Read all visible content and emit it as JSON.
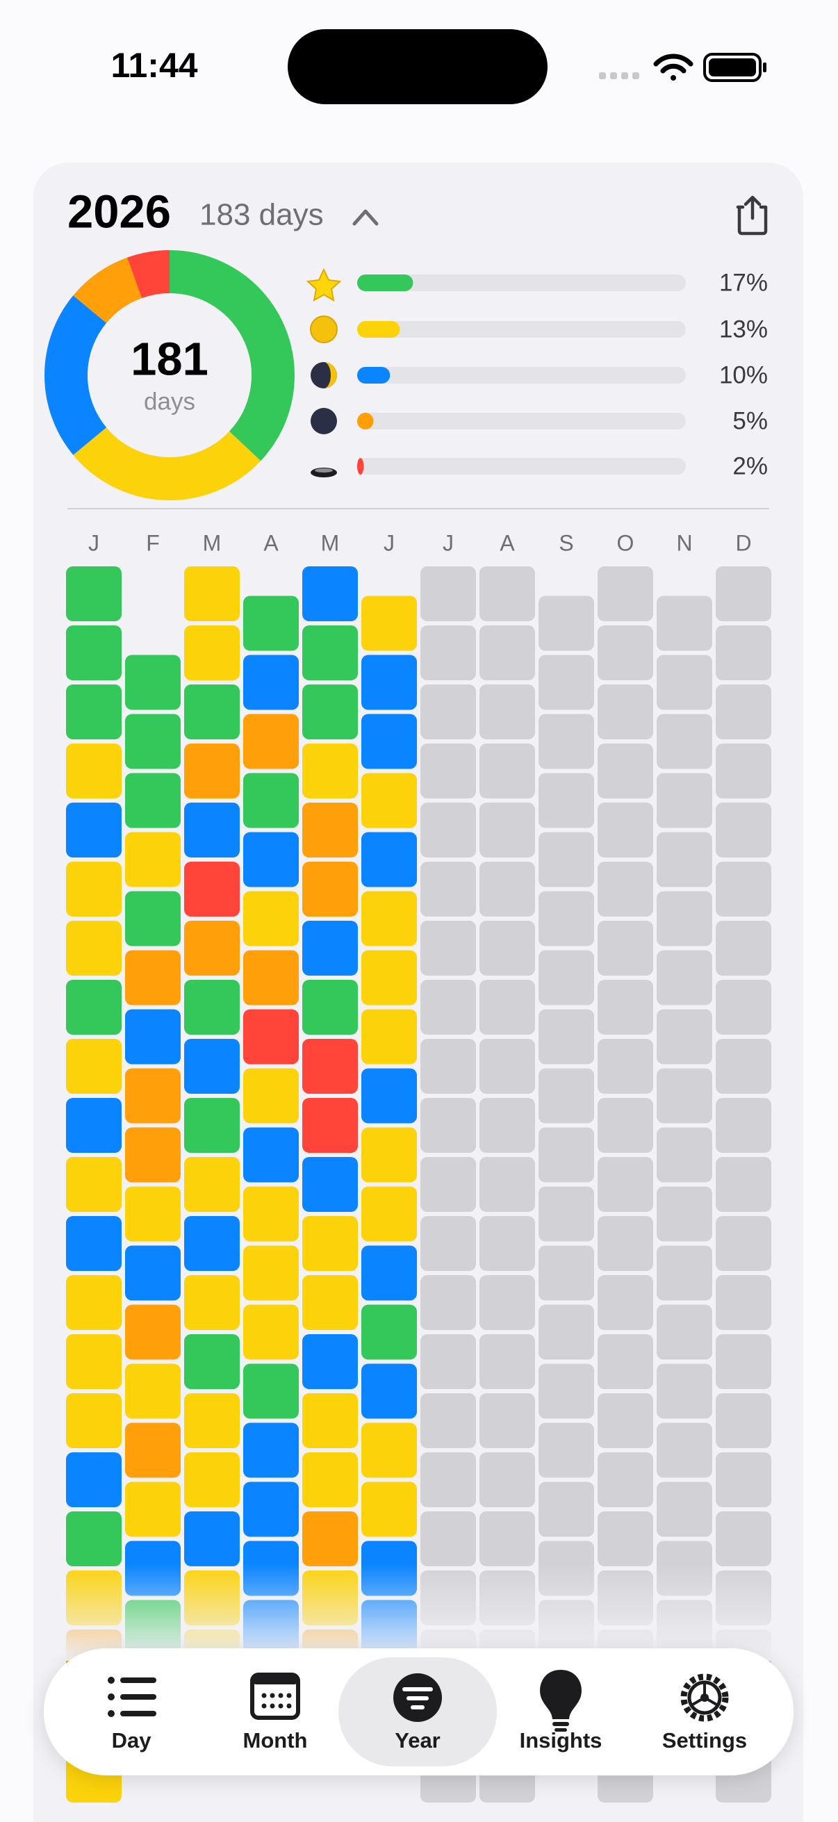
{
  "status_bar": {
    "time": "11:44"
  },
  "summary": {
    "year": "2026",
    "days_label": "183 days",
    "total": "181",
    "total_unit": "days"
  },
  "mood_bars": [
    {
      "value": 17,
      "label": "17%",
      "color": "#34c759"
    },
    {
      "value": 13,
      "label": "13%",
      "color": "#fcd20a"
    },
    {
      "value": 10,
      "label": "10%",
      "color": "#0a84ff"
    },
    {
      "value": 5,
      "label": "5%",
      "color": "#ff9f0a"
    },
    {
      "value": 2,
      "label": "2%",
      "color": "#ff453a"
    }
  ],
  "bar_max": 100,
  "months": [
    "J",
    "F",
    "M",
    "A",
    "M",
    "J",
    "J",
    "A",
    "S",
    "O",
    "N",
    "D"
  ],
  "tabs": [
    "Day",
    "Month",
    "Year",
    "Insights",
    "Settings"
  ],
  "selected_tab": 2
}
